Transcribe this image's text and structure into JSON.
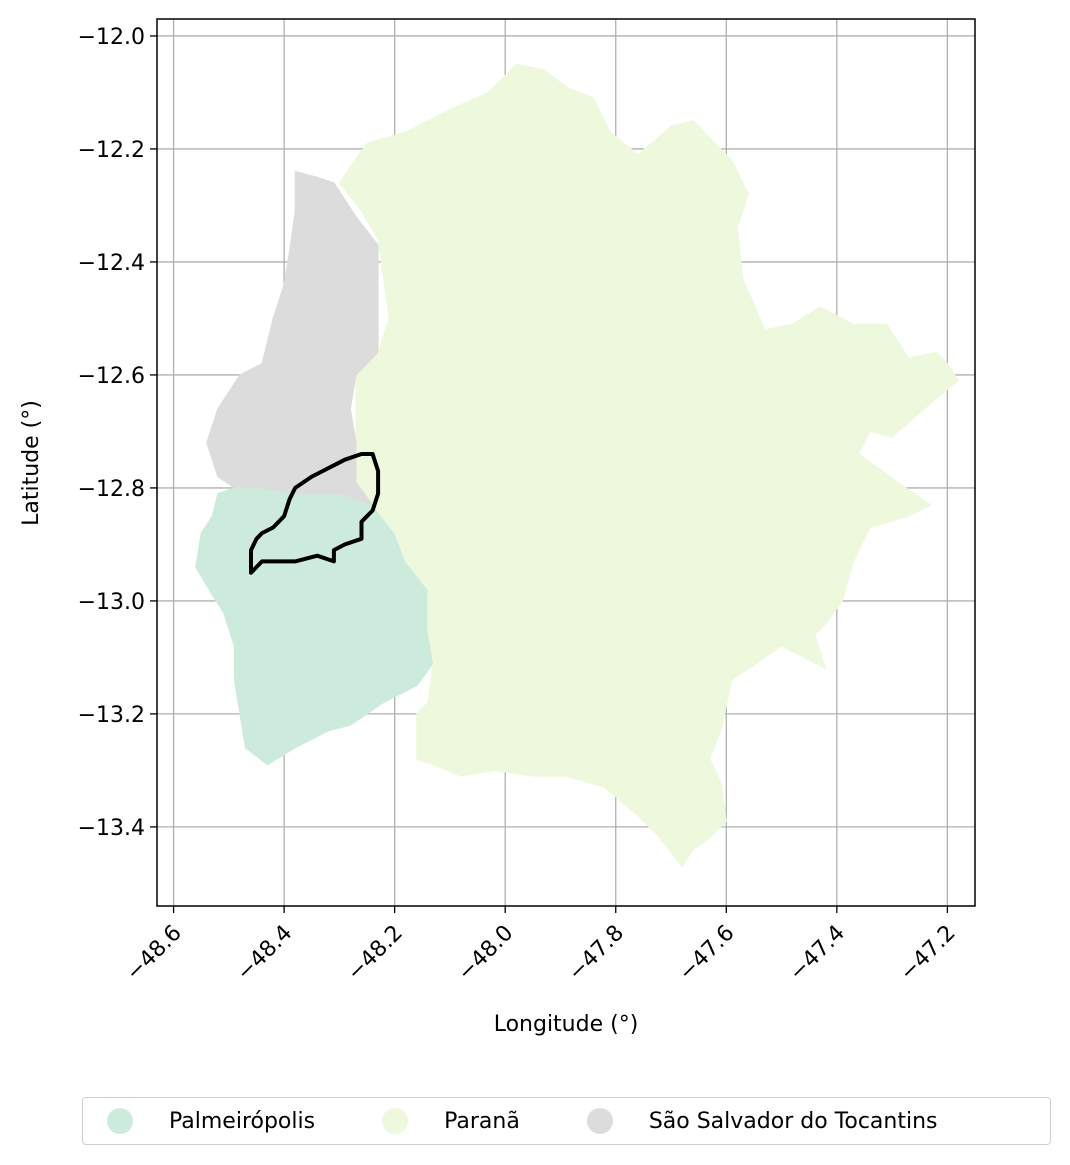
{
  "chart_data": {
    "type": "map",
    "title": "",
    "xlabel": "Longitude (°)",
    "ylabel": "Latitude (°)",
    "xlim": [
      -48.63,
      -47.15
    ],
    "ylim": [
      -13.54,
      -11.97
    ],
    "grid": true,
    "x_ticks": [
      -48.6,
      -48.4,
      -48.2,
      -48.0,
      -47.8,
      -47.6,
      -47.4,
      -47.2
    ],
    "x_tick_labels": [
      "−48.6",
      "−48.4",
      "−48.2",
      "−48.0",
      "−47.8",
      "−47.6",
      "−47.4",
      "−47.2"
    ],
    "y_ticks": [
      -12.0,
      -12.2,
      -12.4,
      -12.6,
      -12.8,
      -13.0,
      -13.2,
      -13.4
    ],
    "y_tick_labels": [
      "−12.0",
      "−12.2",
      "−12.4",
      "−12.6",
      "−12.8",
      "−13.0",
      "−13.2",
      "−13.4"
    ],
    "legend_position": "bottom-center",
    "regions": [
      {
        "name": "Palmeirópolis",
        "color": "#cdebdc",
        "polygon": [
          [
            -48.44,
            -12.8
          ],
          [
            -48.38,
            -12.81
          ],
          [
            -48.3,
            -12.81
          ],
          [
            -48.24,
            -12.83
          ],
          [
            -48.2,
            -12.88
          ],
          [
            -48.18,
            -12.93
          ],
          [
            -48.14,
            -12.98
          ],
          [
            -48.14,
            -13.05
          ],
          [
            -48.13,
            -13.11
          ],
          [
            -48.16,
            -13.15
          ],
          [
            -48.22,
            -13.18
          ],
          [
            -48.28,
            -13.22
          ],
          [
            -48.32,
            -13.23
          ],
          [
            -48.38,
            -13.26
          ],
          [
            -48.43,
            -13.29
          ],
          [
            -48.47,
            -13.26
          ],
          [
            -48.48,
            -13.2
          ],
          [
            -48.49,
            -13.14
          ],
          [
            -48.49,
            -13.08
          ],
          [
            -48.51,
            -13.02
          ],
          [
            -48.53,
            -12.99
          ],
          [
            -48.56,
            -12.94
          ],
          [
            -48.55,
            -12.88
          ],
          [
            -48.53,
            -12.85
          ],
          [
            -48.52,
            -12.81
          ],
          [
            -48.49,
            -12.8
          ]
        ]
      },
      {
        "name": "Paranã",
        "color": "#eef8dc",
        "polygon": [
          [
            -48.3,
            -12.26
          ],
          [
            -48.25,
            -12.19
          ],
          [
            -48.18,
            -12.17
          ],
          [
            -48.1,
            -12.13
          ],
          [
            -48.03,
            -12.1
          ],
          [
            -47.98,
            -12.05
          ],
          [
            -47.93,
            -12.06
          ],
          [
            -47.89,
            -12.09
          ],
          [
            -47.84,
            -12.11
          ],
          [
            -47.81,
            -12.17
          ],
          [
            -47.76,
            -12.21
          ],
          [
            -47.7,
            -12.16
          ],
          [
            -47.66,
            -12.15
          ],
          [
            -47.64,
            -12.17
          ],
          [
            -47.59,
            -12.22
          ],
          [
            -47.56,
            -12.28
          ],
          [
            -47.58,
            -12.34
          ],
          [
            -47.57,
            -12.43
          ],
          [
            -47.53,
            -12.52
          ],
          [
            -47.48,
            -12.51
          ],
          [
            -47.43,
            -12.48
          ],
          [
            -47.37,
            -12.51
          ],
          [
            -47.31,
            -12.51
          ],
          [
            -47.27,
            -12.57
          ],
          [
            -47.22,
            -12.56
          ],
          [
            -47.2,
            -12.58
          ],
          [
            -47.18,
            -12.61
          ],
          [
            -47.23,
            -12.65
          ],
          [
            -47.3,
            -12.71
          ],
          [
            -47.34,
            -12.7
          ],
          [
            -47.36,
            -12.74
          ],
          [
            -47.29,
            -12.79
          ],
          [
            -47.23,
            -12.83
          ],
          [
            -47.27,
            -12.85
          ],
          [
            -47.34,
            -12.87
          ],
          [
            -47.37,
            -12.93
          ],
          [
            -47.39,
            -13.0
          ],
          [
            -47.42,
            -13.04
          ],
          [
            -47.44,
            -13.06
          ],
          [
            -47.42,
            -13.12
          ],
          [
            -47.5,
            -13.08
          ],
          [
            -47.59,
            -13.14
          ],
          [
            -47.61,
            -13.23
          ],
          [
            -47.63,
            -13.28
          ],
          [
            -47.61,
            -13.32
          ],
          [
            -47.6,
            -13.39
          ],
          [
            -47.63,
            -13.42
          ],
          [
            -47.66,
            -13.44
          ],
          [
            -47.68,
            -13.47
          ],
          [
            -47.72,
            -13.42
          ],
          [
            -47.76,
            -13.38
          ],
          [
            -47.82,
            -13.33
          ],
          [
            -47.89,
            -13.31
          ],
          [
            -47.95,
            -13.31
          ],
          [
            -48.02,
            -13.3
          ],
          [
            -48.08,
            -13.31
          ],
          [
            -48.13,
            -13.29
          ],
          [
            -48.16,
            -13.28
          ],
          [
            -48.16,
            -13.2
          ],
          [
            -48.14,
            -13.18
          ],
          [
            -48.13,
            -13.11
          ],
          [
            -48.14,
            -13.05
          ],
          [
            -48.14,
            -12.98
          ],
          [
            -48.18,
            -12.93
          ],
          [
            -48.2,
            -12.88
          ],
          [
            -48.24,
            -12.83
          ],
          [
            -48.27,
            -12.79
          ],
          [
            -48.27,
            -12.72
          ],
          [
            -48.27,
            -12.66
          ],
          [
            -48.27,
            -12.6
          ],
          [
            -48.23,
            -12.56
          ],
          [
            -48.21,
            -12.5
          ],
          [
            -48.22,
            -12.43
          ],
          [
            -48.23,
            -12.36
          ],
          [
            -48.26,
            -12.31
          ]
        ]
      },
      {
        "name": "São Salvador do Tocantins",
        "color": "#dcdcdc",
        "polygon": [
          [
            -48.38,
            -12.24
          ],
          [
            -48.34,
            -12.25
          ],
          [
            -48.31,
            -12.26
          ],
          [
            -48.27,
            -12.32
          ],
          [
            -48.23,
            -12.37
          ],
          [
            -48.23,
            -12.42
          ],
          [
            -48.23,
            -12.5
          ],
          [
            -48.23,
            -12.56
          ],
          [
            -48.27,
            -12.6
          ],
          [
            -48.28,
            -12.66
          ],
          [
            -48.27,
            -12.72
          ],
          [
            -48.27,
            -12.79
          ],
          [
            -48.24,
            -12.83
          ],
          [
            -48.3,
            -12.81
          ],
          [
            -48.38,
            -12.81
          ],
          [
            -48.44,
            -12.8
          ],
          [
            -48.49,
            -12.8
          ],
          [
            -48.52,
            -12.78
          ],
          [
            -48.54,
            -12.72
          ],
          [
            -48.52,
            -12.66
          ],
          [
            -48.48,
            -12.6
          ],
          [
            -48.44,
            -12.58
          ],
          [
            -48.42,
            -12.5
          ],
          [
            -48.4,
            -12.44
          ],
          [
            -48.39,
            -12.38
          ],
          [
            -48.38,
            -12.31
          ]
        ]
      }
    ],
    "outline": {
      "color": "#000000",
      "polygon": [
        [
          -48.46,
          -12.95
        ],
        [
          -48.44,
          -12.93
        ],
        [
          -48.42,
          -12.93
        ],
        [
          -48.38,
          -12.93
        ],
        [
          -48.34,
          -12.92
        ],
        [
          -48.31,
          -12.93
        ],
        [
          -48.31,
          -12.91
        ],
        [
          -48.29,
          -12.9
        ],
        [
          -48.26,
          -12.89
        ],
        [
          -48.26,
          -12.86
        ],
        [
          -48.24,
          -12.84
        ],
        [
          -48.23,
          -12.81
        ],
        [
          -48.23,
          -12.77
        ],
        [
          -48.24,
          -12.74
        ],
        [
          -48.26,
          -12.74
        ],
        [
          -48.29,
          -12.75
        ],
        [
          -48.31,
          -12.76
        ],
        [
          -48.33,
          -12.77
        ],
        [
          -48.35,
          -12.78
        ],
        [
          -48.38,
          -12.8
        ],
        [
          -48.39,
          -12.82
        ],
        [
          -48.4,
          -12.85
        ],
        [
          -48.42,
          -12.87
        ],
        [
          -48.44,
          -12.88
        ],
        [
          -48.45,
          -12.89
        ],
        [
          -48.46,
          -12.91
        ]
      ]
    }
  },
  "legend": {
    "items": [
      {
        "label": "Palmeirópolis",
        "color": "#cdebdc"
      },
      {
        "label": "Paranã",
        "color": "#eef8dc"
      },
      {
        "label": "São Salvador do Tocantins",
        "color": "#dcdcdc"
      }
    ]
  }
}
